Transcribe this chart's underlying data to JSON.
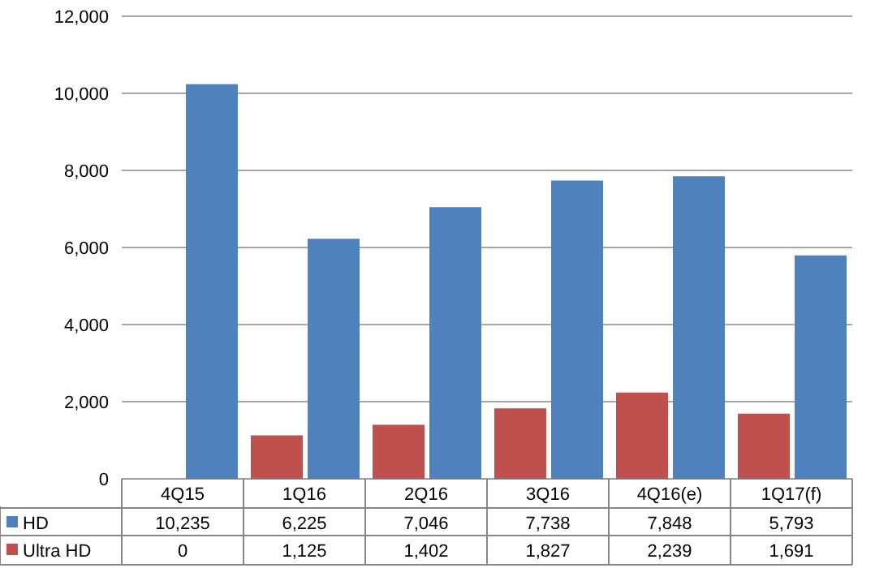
{
  "chart_data": {
    "type": "bar",
    "categories": [
      "4Q15",
      "1Q16",
      "2Q16",
      "3Q16",
      "4Q16(e)",
      "1Q17(f)"
    ],
    "series": [
      {
        "name": "HD",
        "color": "#4f81bd",
        "values": [
          10235,
          6225,
          7046,
          7738,
          7848,
          5793
        ],
        "value_labels": [
          "10,235",
          "6,225",
          "7,046",
          "7,738",
          "7,848",
          "5,793"
        ]
      },
      {
        "name": "Ultra HD",
        "color": "#c0504d",
        "values": [
          0,
          1125,
          1402,
          1827,
          2239,
          1691
        ],
        "value_labels": [
          "0",
          "1,125",
          "1,402",
          "1,827",
          "2,239",
          "1,691"
        ]
      }
    ],
    "ylim": [
      0,
      12000
    ],
    "yticks": [
      {
        "value": 0,
        "label": "0"
      },
      {
        "value": 2000,
        "label": "2,000"
      },
      {
        "value": 4000,
        "label": "4,000"
      },
      {
        "value": 6000,
        "label": "6,000"
      },
      {
        "value": 8000,
        "label": "8,000"
      },
      {
        "value": 10000,
        "label": "10,000"
      },
      {
        "value": 12000,
        "label": "12,000"
      }
    ],
    "grid": "y",
    "legend": "bottom"
  }
}
